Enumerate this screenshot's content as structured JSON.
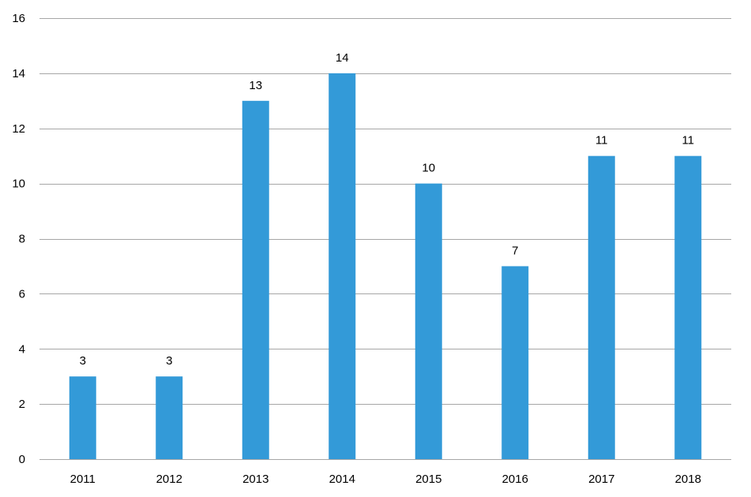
{
  "chart_data": {
    "type": "bar",
    "title": "",
    "xlabel": "",
    "ylabel": "",
    "categories": [
      "2011",
      "2012",
      "2013",
      "2014",
      "2015",
      "2016",
      "2017",
      "2018"
    ],
    "values": [
      3,
      3,
      13,
      14,
      10,
      7,
      11,
      11
    ],
    "ylim": [
      0,
      16
    ],
    "yticks": [
      0,
      2,
      4,
      6,
      8,
      10,
      12,
      14,
      16
    ],
    "grid": true,
    "legend": "none",
    "data_labels": true,
    "bar_color": "#339AD8",
    "grid_color": "#A6A6A6",
    "text_color": "#000000"
  }
}
